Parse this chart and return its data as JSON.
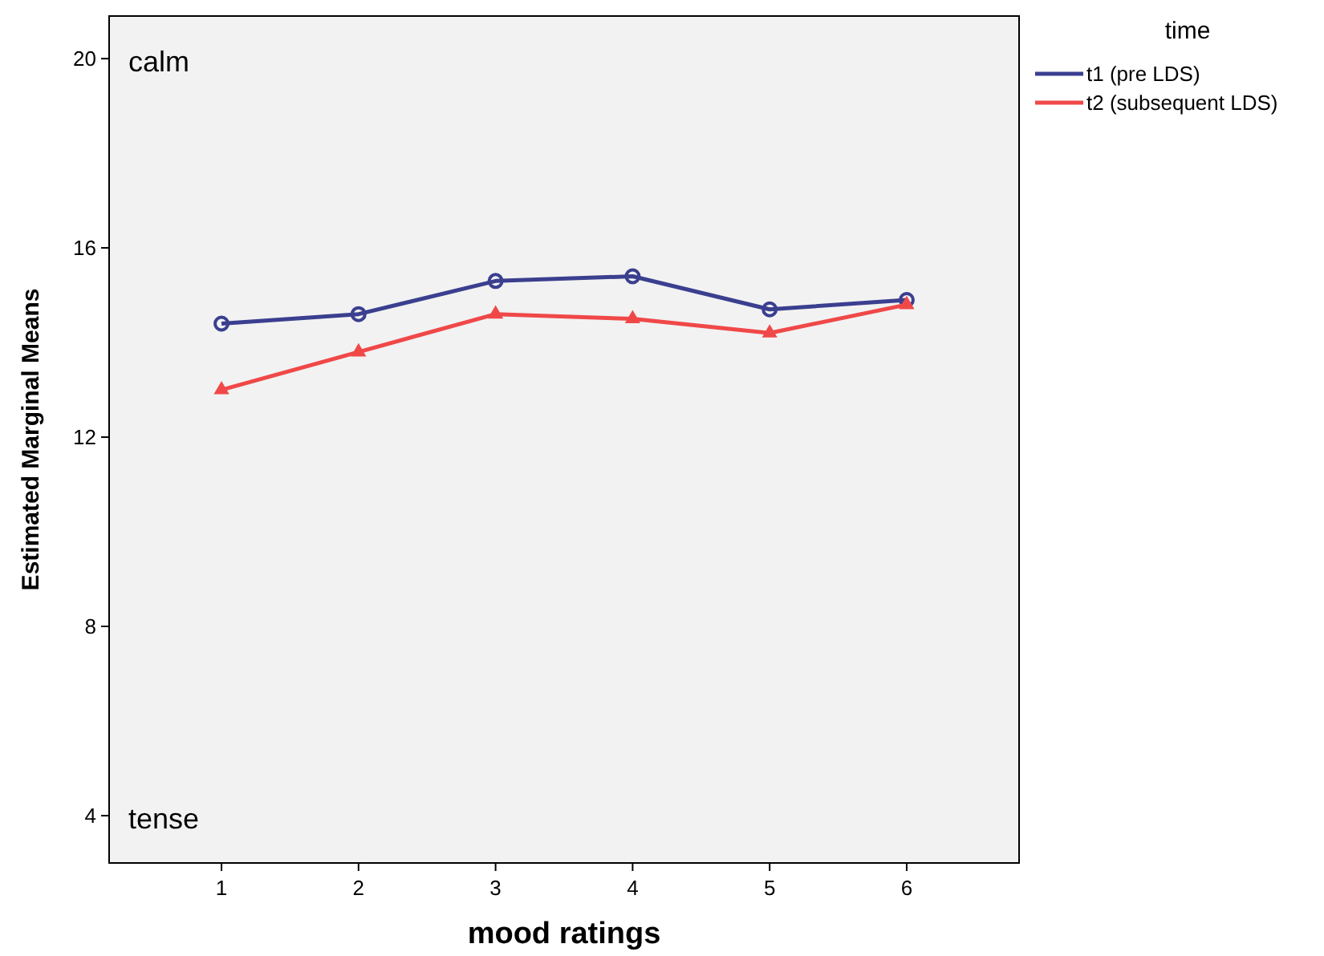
{
  "chart_data": {
    "type": "line",
    "xlabel": "mood ratings",
    "ylabel": "Estimated Marginal Means",
    "legend_title": "time",
    "x": [
      1,
      2,
      3,
      4,
      5,
      6
    ],
    "xlim": [
      0.18,
      6.82
    ],
    "xticks": [
      1,
      2,
      3,
      4,
      5,
      6
    ],
    "ylim": [
      3,
      20.9
    ],
    "yticks": [
      4,
      8,
      12,
      16,
      20
    ],
    "series": [
      {
        "name": "t1 (pre LDS)",
        "color": "#3b3f8f",
        "marker": "circle",
        "values": [
          14.4,
          14.6,
          15.3,
          15.4,
          14.7,
          14.9
        ]
      },
      {
        "name": "t2 (subsequent LDS)",
        "color": "#f04848",
        "marker": "triangle",
        "values": [
          13.0,
          13.8,
          14.6,
          14.5,
          14.2,
          14.8
        ]
      }
    ],
    "annotations": [
      "calm",
      "tense"
    ],
    "legend": "top right",
    "grid": false
  }
}
